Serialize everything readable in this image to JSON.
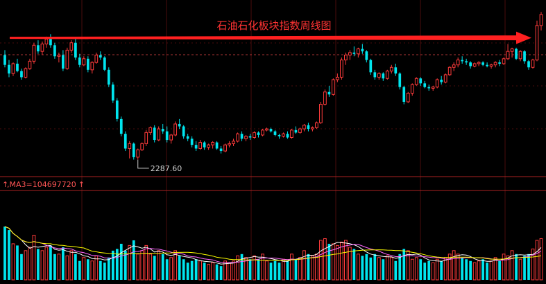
{
  "chart_data": [
    {
      "type": "candlestick",
      "title": "石油石化板块指数周线图",
      "low_label": "2287.60",
      "ylim": [
        2180,
        3520
      ],
      "colors": {
        "up": "#ff3b3b",
        "down": "#00e5ee",
        "arrow": "#ff2020",
        "title": "#ff3333",
        "label": "#d0d0d0"
      },
      "ohlc": [
        [
          3140,
          3180,
          3040,
          3060
        ],
        [
          3060,
          3100,
          2960,
          2990
        ],
        [
          2990,
          3080,
          2970,
          3070
        ],
        [
          3070,
          3110,
          3000,
          3010
        ],
        [
          3010,
          3030,
          2940,
          2960
        ],
        [
          2960,
          3040,
          2950,
          3030
        ],
        [
          3030,
          3110,
          3020,
          3090
        ],
        [
          3090,
          3240,
          3070,
          3220
        ],
        [
          3220,
          3260,
          3150,
          3170
        ],
        [
          3170,
          3250,
          3140,
          3230
        ],
        [
          3230,
          3290,
          3200,
          3270
        ],
        [
          3270,
          3310,
          3200,
          3220
        ],
        [
          3220,
          3240,
          3110,
          3130
        ],
        [
          3130,
          3160,
          3080,
          3140
        ],
        [
          3140,
          3180,
          3010,
          3030
        ],
        [
          3030,
          3200,
          3020,
          3180
        ],
        [
          3180,
          3260,
          3160,
          3240
        ],
        [
          3240,
          3270,
          3100,
          3120
        ],
        [
          3120,
          3150,
          3040,
          3060
        ],
        [
          3060,
          3130,
          3050,
          3110
        ],
        [
          3110,
          3130,
          3000,
          3020
        ],
        [
          3020,
          3090,
          2990,
          3080
        ],
        [
          3080,
          3160,
          3070,
          3140
        ],
        [
          3140,
          3170,
          3100,
          3120
        ],
        [
          3120,
          3130,
          3010,
          3020
        ],
        [
          3020,
          3040,
          2880,
          2900
        ],
        [
          2900,
          2920,
          2750,
          2770
        ],
        [
          2770,
          2790,
          2600,
          2620
        ],
        [
          2620,
          2640,
          2480,
          2500
        ],
        [
          2500,
          2520,
          2360,
          2380
        ],
        [
          2380,
          2440,
          2300,
          2420
        ],
        [
          2420,
          2430,
          2290,
          2310
        ],
        [
          2310,
          2380,
          2288,
          2370
        ],
        [
          2370,
          2430,
          2360,
          2420
        ],
        [
          2420,
          2530,
          2400,
          2510
        ],
        [
          2510,
          2560,
          2490,
          2550
        ],
        [
          2550,
          2570,
          2430,
          2450
        ],
        [
          2450,
          2560,
          2440,
          2540
        ],
        [
          2540,
          2580,
          2500,
          2520
        ],
        [
          2520,
          2560,
          2430,
          2450
        ],
        [
          2450,
          2500,
          2420,
          2490
        ],
        [
          2490,
          2600,
          2480,
          2580
        ],
        [
          2580,
          2620,
          2540,
          2560
        ],
        [
          2560,
          2570,
          2460,
          2480
        ],
        [
          2480,
          2500,
          2440,
          2460
        ],
        [
          2460,
          2480,
          2390,
          2410
        ],
        [
          2410,
          2440,
          2360,
          2380
        ],
        [
          2380,
          2450,
          2370,
          2430
        ],
        [
          2430,
          2440,
          2370,
          2390
        ],
        [
          2390,
          2420,
          2370,
          2410
        ],
        [
          2410,
          2440,
          2380,
          2430
        ],
        [
          2430,
          2440,
          2370,
          2380
        ],
        [
          2380,
          2400,
          2340,
          2360
        ],
        [
          2360,
          2420,
          2350,
          2410
        ],
        [
          2410,
          2440,
          2390,
          2420
        ],
        [
          2420,
          2460,
          2400,
          2440
        ],
        [
          2440,
          2510,
          2430,
          2500
        ],
        [
          2500,
          2520,
          2440,
          2460
        ],
        [
          2460,
          2490,
          2440,
          2480
        ],
        [
          2480,
          2500,
          2450,
          2470
        ],
        [
          2470,
          2520,
          2460,
          2510
        ],
        [
          2510,
          2520,
          2470,
          2490
        ],
        [
          2490,
          2540,
          2480,
          2530
        ],
        [
          2530,
          2550,
          2520,
          2540
        ],
        [
          2540,
          2550,
          2510,
          2520
        ],
        [
          2520,
          2530,
          2480,
          2490
        ],
        [
          2490,
          2500,
          2460,
          2480
        ],
        [
          2480,
          2510,
          2470,
          2500
        ],
        [
          2500,
          2520,
          2460,
          2470
        ],
        [
          2470,
          2540,
          2460,
          2530
        ],
        [
          2530,
          2560,
          2500,
          2510
        ],
        [
          2510,
          2550,
          2500,
          2540
        ],
        [
          2540,
          2580,
          2520,
          2570
        ],
        [
          2570,
          2590,
          2520,
          2540
        ],
        [
          2540,
          2560,
          2520,
          2550
        ],
        [
          2550,
          2600,
          2540,
          2590
        ],
        [
          2590,
          2760,
          2580,
          2740
        ],
        [
          2740,
          2860,
          2730,
          2840
        ],
        [
          2840,
          2890,
          2800,
          2820
        ],
        [
          2820,
          2950,
          2810,
          2940
        ],
        [
          2940,
          2990,
          2920,
          2960
        ],
        [
          2960,
          3120,
          2940,
          3100
        ],
        [
          3100,
          3160,
          3060,
          3140
        ],
        [
          3140,
          3180,
          3100,
          3160
        ],
        [
          3160,
          3210,
          3130,
          3150
        ],
        [
          3150,
          3200,
          3120,
          3190
        ],
        [
          3190,
          3230,
          3150,
          3170
        ],
        [
          3170,
          3180,
          3080,
          3100
        ],
        [
          3100,
          3110,
          2980,
          3000
        ],
        [
          3000,
          3020,
          2940,
          2960
        ],
        [
          2960,
          3000,
          2940,
          2990
        ],
        [
          2990,
          3000,
          2930,
          2950
        ],
        [
          2950,
          3020,
          2940,
          3010
        ],
        [
          3010,
          3060,
          2990,
          3040
        ],
        [
          3040,
          3070,
          2970,
          2990
        ],
        [
          2990,
          3000,
          2860,
          2880
        ],
        [
          2880,
          2890,
          2740,
          2760
        ],
        [
          2760,
          2840,
          2750,
          2830
        ],
        [
          2830,
          2910,
          2810,
          2900
        ],
        [
          2900,
          2960,
          2890,
          2950
        ],
        [
          2950,
          2960,
          2890,
          2910
        ],
        [
          2910,
          2930,
          2870,
          2880
        ],
        [
          2880,
          2900,
          2850,
          2870
        ],
        [
          2870,
          2890,
          2850,
          2880
        ],
        [
          2880,
          2950,
          2870,
          2940
        ],
        [
          2940,
          2970,
          2900,
          2920
        ],
        [
          2920,
          2990,
          2910,
          2980
        ],
        [
          2980,
          3050,
          2970,
          3040
        ],
        [
          3040,
          3080,
          3010,
          3060
        ],
        [
          3060,
          3120,
          3040,
          3100
        ],
        [
          3100,
          3130,
          3070,
          3090
        ],
        [
          3090,
          3110,
          3060,
          3080
        ],
        [
          3080,
          3090,
          3030,
          3050
        ],
        [
          3050,
          3080,
          3040,
          3070
        ],
        [
          3070,
          3090,
          3050,
          3080
        ],
        [
          3080,
          3090,
          3050,
          3060
        ],
        [
          3060,
          3080,
          3040,
          3050
        ],
        [
          3050,
          3070,
          3030,
          3060
        ],
        [
          3060,
          3090,
          3040,
          3080
        ],
        [
          3080,
          3100,
          3050,
          3070
        ],
        [
          3070,
          3120,
          3060,
          3110
        ],
        [
          3110,
          3230,
          3100,
          3170
        ],
        [
          3170,
          3200,
          3120,
          3190
        ],
        [
          3190,
          3200,
          3100,
          3110
        ],
        [
          3110,
          3180,
          3090,
          3170
        ],
        [
          3170,
          3180,
          3070,
          3090
        ],
        [
          3090,
          3100,
          3020,
          3040
        ],
        [
          3040,
          3110,
          3030,
          3100
        ],
        [
          3100,
          3420,
          3090,
          3380
        ],
        [
          3380,
          3490,
          3340,
          3470
        ]
      ]
    },
    {
      "type": "bar",
      "indicator_label": ",MA3=104697720",
      "colors": {
        "up": "#ff3b3b",
        "down": "#00e5ee",
        "ma1": "#ffffff",
        "ma2": "#ff66ff",
        "ma3": "#ffff00"
      },
      "volumes": [
        62,
        58,
        42,
        40,
        30,
        34,
        38,
        52,
        36,
        34,
        38,
        40,
        30,
        30,
        38,
        28,
        34,
        30,
        22,
        26,
        24,
        22,
        28,
        22,
        20,
        26,
        34,
        36,
        42,
        34,
        40,
        46,
        30,
        34,
        40,
        30,
        28,
        34,
        30,
        24,
        26,
        34,
        28,
        24,
        20,
        22,
        24,
        22,
        20,
        18,
        20,
        18,
        16,
        22,
        20,
        22,
        28,
        30,
        26,
        24,
        28,
        24,
        30,
        22,
        20,
        22,
        20,
        24,
        22,
        30,
        24,
        26,
        34,
        30,
        28,
        30,
        46,
        48,
        42,
        42,
        40,
        44,
        46,
        38,
        36,
        30,
        28,
        30,
        26,
        30,
        26,
        24,
        28,
        26,
        22,
        30,
        36,
        34,
        24,
        26,
        24,
        20,
        22,
        20,
        24,
        22,
        26,
        30,
        34,
        30,
        26,
        24,
        22,
        20,
        22,
        24,
        20,
        22,
        26,
        22,
        30,
        28,
        34,
        30,
        24,
        28,
        30,
        36,
        46,
        48
      ],
      "ymax": 100
    }
  ]
}
